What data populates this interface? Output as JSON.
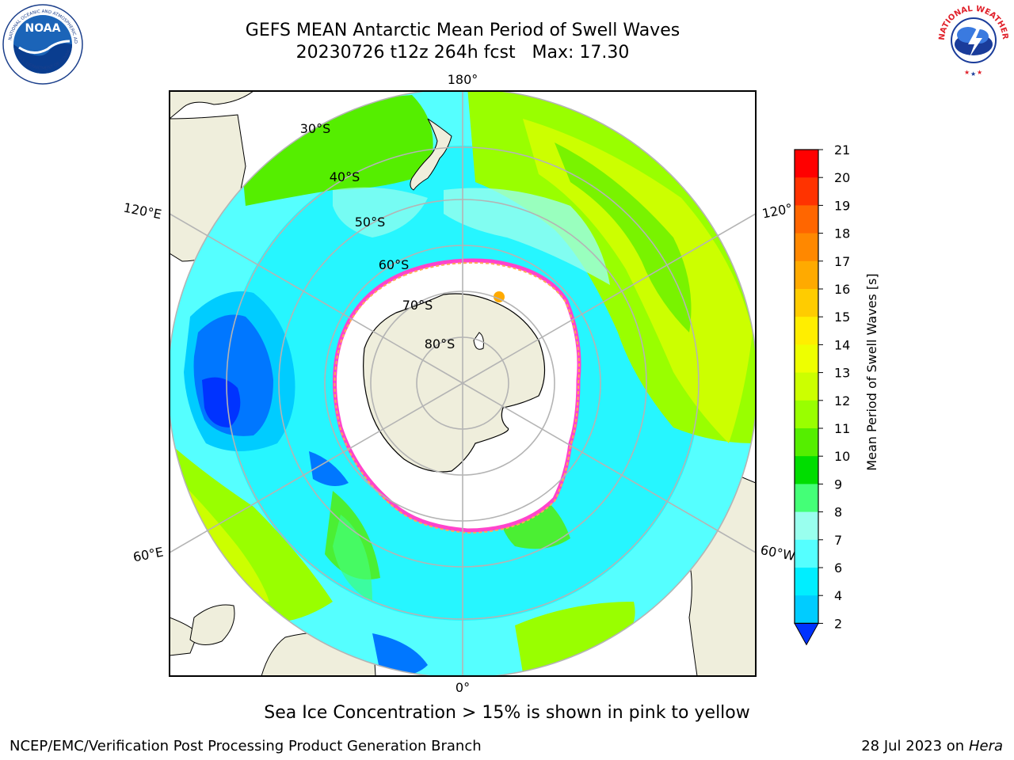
{
  "title": {
    "line1": "GEFS MEAN Antarctic Mean Period of Swell Waves",
    "line2": "20230726 t12z 264h fcst   Max: 17.30"
  },
  "map": {
    "lon_labels": {
      "top": "180°",
      "bottom": "0°",
      "left_upper": "120°E",
      "left_lower": "60°E",
      "right_upper": "120°",
      "right_lower": "60°W"
    },
    "lat_labels": [
      "30°S",
      "40°S",
      "50°S",
      "60°S",
      "70°S",
      "80°S"
    ],
    "colors": {
      "land": "#efeedc",
      "ice_edge_pink": "#ff44cc",
      "ice_edge_orange": "#ffaa55",
      "grid": "#b4b4b4"
    }
  },
  "colorbar": {
    "label": "Mean Period of Swell Waves [s]",
    "ticks": [
      "21",
      "20",
      "19",
      "18",
      "17",
      "16",
      "15",
      "14",
      "13",
      "12",
      "11",
      "10",
      "9",
      "8",
      "7",
      "6",
      "4",
      "2"
    ],
    "colors": [
      "#ff0000",
      "#ff3300",
      "#ff6600",
      "#ff8800",
      "#ffaa00",
      "#ffcc00",
      "#ffee00",
      "#eeff00",
      "#ccff00",
      "#99ff00",
      "#55ee00",
      "#00dd00",
      "#44ff77",
      "#99ffee",
      "#55ffff",
      "#00eeff",
      "#00ccff",
      "#0077ff",
      "#0033ff"
    ]
  },
  "note": "Sea Ice Concentration > 15% is shown in pink to yellow",
  "footer": {
    "left": "NCEP/EMC/Verification Post Processing Product Generation Branch",
    "right_date": "28 Jul 2023 on ",
    "right_host": "Hera"
  },
  "logos": {
    "noaa_text": "NOAA",
    "nws_text": "NATIONAL WEATHER SERVICE"
  }
}
